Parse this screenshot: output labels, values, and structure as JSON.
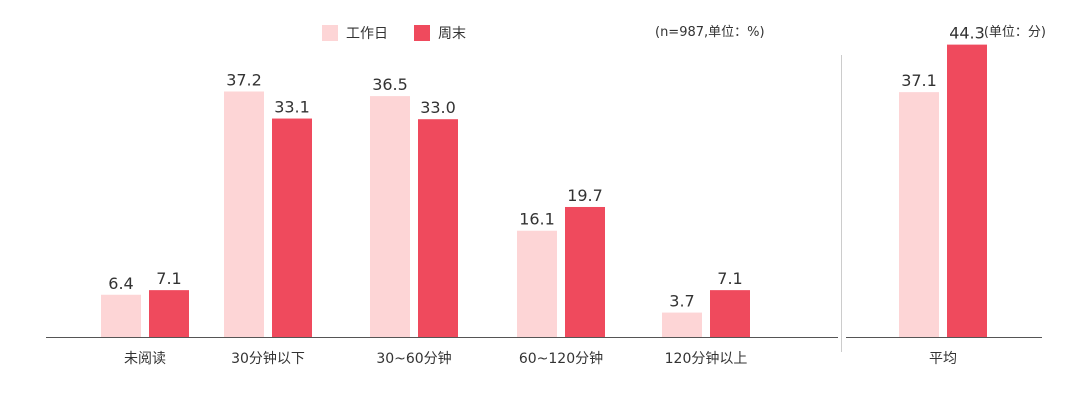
{
  "legend": {
    "workday": "工作日",
    "weekend": "周末"
  },
  "notes": {
    "left": "(n=987,单位：%)",
    "right": "(单位：分)"
  },
  "colors": {
    "workday": "#fdd5d6",
    "weekend": "#ef4a5d",
    "axis": "#555555",
    "divider": "#cccccc"
  },
  "chart_data": [
    {
      "type": "bar",
      "title": "",
      "xlabel": "",
      "ylabel": "",
      "unit": "%",
      "categories": [
        "未阅读",
        "30分钟以下",
        "30~60分钟",
        "60~120分钟",
        "120分钟以上"
      ],
      "series": [
        {
          "name": "工作日",
          "values": [
            6.4,
            37.2,
            36.5,
            16.1,
            3.7
          ]
        },
        {
          "name": "周末",
          "values": [
            7.1,
            33.1,
            33.0,
            19.7,
            7.1
          ]
        }
      ],
      "ylim": [
        0,
        50
      ],
      "grid": false,
      "legend_position": "top"
    },
    {
      "type": "bar",
      "title": "",
      "xlabel": "",
      "ylabel": "",
      "unit": "分",
      "categories": [
        "平均"
      ],
      "series": [
        {
          "name": "工作日",
          "values": [
            37.1
          ]
        },
        {
          "name": "周末",
          "values": [
            44.3
          ]
        }
      ],
      "ylim": [
        0,
        50
      ],
      "grid": false,
      "legend_position": "top"
    }
  ]
}
